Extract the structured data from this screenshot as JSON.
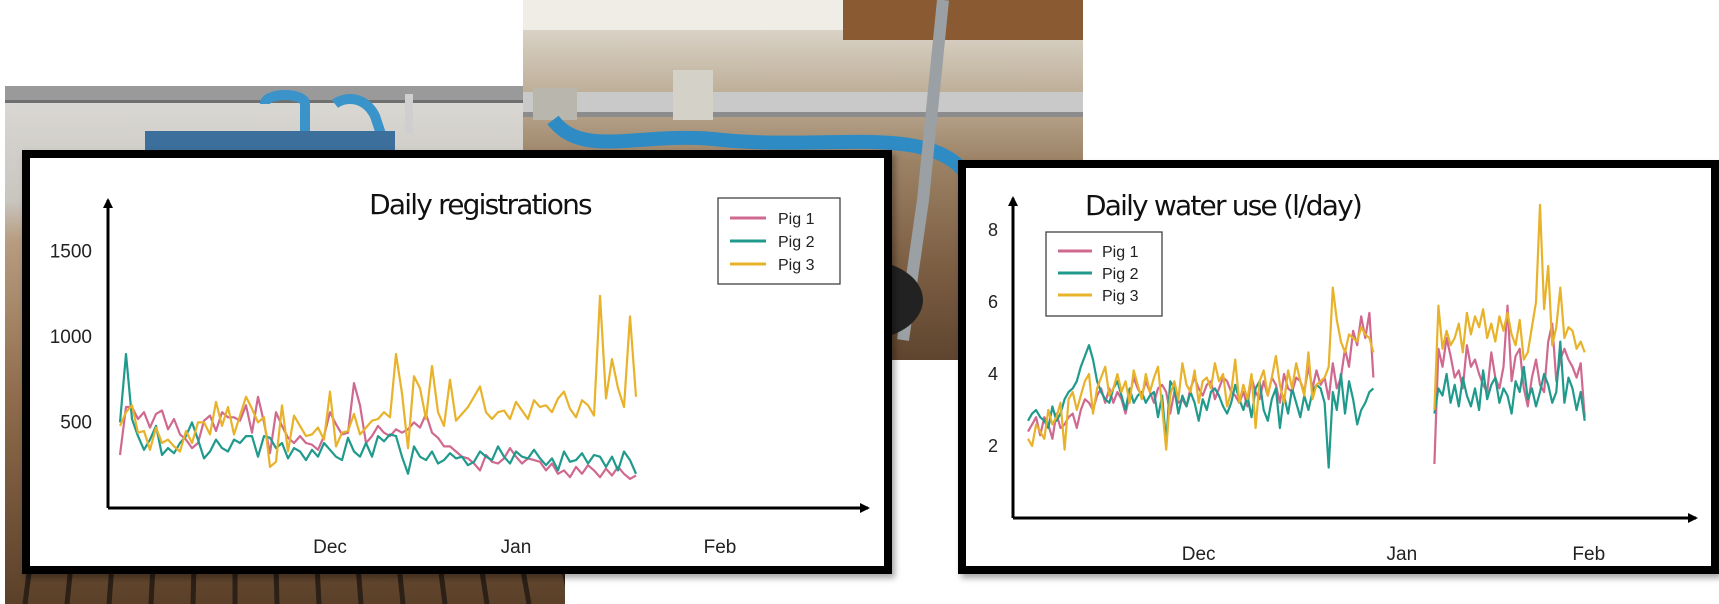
{
  "colors": {
    "pig1": "#d0698f",
    "pig2": "#1f9a8c",
    "pig3": "#e8b32b"
  },
  "chart_data": [
    {
      "type": "line",
      "title": "Daily registrations",
      "xlabel": "",
      "ylabel": "",
      "x_ticks": [
        {
          "label": "Dec",
          "index": 35
        },
        {
          "label": "Jan",
          "index": 66
        },
        {
          "label": "Feb",
          "index": 100
        }
      ],
      "y_ticks": [
        500,
        1000,
        1500
      ],
      "ylim": [
        0,
        1800
      ],
      "xlim": [
        0,
        112
      ],
      "grid": false,
      "legend_position": "top-right",
      "series": [
        {
          "name": "Pig 1",
          "color": "#d0698f",
          "values": [
            310,
            590,
            590,
            520,
            560,
            470,
            550,
            570,
            460,
            520,
            430,
            400,
            350,
            380,
            510,
            540,
            450,
            560,
            530,
            530,
            510,
            600,
            440,
            650,
            500,
            320,
            560,
            480,
            410,
            380,
            420,
            380,
            370,
            340,
            420,
            560,
            490,
            430,
            440,
            730,
            600,
            380,
            420,
            480,
            440,
            420,
            460,
            440,
            460,
            500,
            470,
            550,
            440,
            410,
            360,
            360,
            330,
            300,
            290,
            260,
            220,
            310,
            270,
            260,
            290,
            350,
            300,
            260,
            290,
            280,
            270,
            220,
            260,
            200,
            220,
            180,
            240,
            200,
            250,
            220,
            180,
            230,
            190,
            240,
            200,
            170,
            190
          ]
        },
        {
          "name": "Pig 2",
          "color": "#1f9a8c",
          "values": [
            500,
            900,
            520,
            420,
            340,
            400,
            480,
            310,
            350,
            320,
            380,
            420,
            500,
            400,
            290,
            330,
            400,
            350,
            330,
            400,
            380,
            420,
            420,
            300,
            420,
            410,
            350,
            380,
            290,
            350,
            330,
            280,
            340,
            300,
            380,
            340,
            300,
            280,
            410,
            330,
            300,
            380,
            300,
            420,
            390,
            430,
            420,
            300,
            200,
            360,
            300,
            280,
            330,
            260,
            280,
            320,
            290,
            300,
            250,
            270,
            330,
            300,
            280,
            360,
            300,
            260,
            330,
            300,
            290,
            340,
            290,
            250,
            290,
            220,
            330,
            270,
            280,
            320,
            260,
            310,
            300,
            240,
            300,
            220,
            330,
            280,
            200
          ]
        },
        {
          "name": "Pig 3",
          "color": "#e8b32b",
          "values": [
            480,
            560,
            600,
            440,
            450,
            340,
            470,
            380,
            400,
            360,
            330,
            450,
            380,
            500,
            500,
            430,
            620,
            480,
            590,
            430,
            540,
            650,
            580,
            500,
            530,
            240,
            270,
            600,
            330,
            540,
            480,
            420,
            430,
            470,
            400,
            680,
            360,
            440,
            450,
            550,
            430,
            470,
            510,
            520,
            560,
            530,
            900,
            670,
            350,
            770,
            700,
            520,
            830,
            560,
            480,
            750,
            510,
            550,
            590,
            650,
            710,
            560,
            520,
            560,
            570,
            520,
            620,
            570,
            520,
            630,
            590,
            600,
            560,
            640,
            680,
            580,
            530,
            630,
            600,
            540,
            1240,
            640,
            870,
            700,
            590,
            1120,
            650
          ]
        }
      ]
    },
    {
      "type": "line",
      "title": "Daily water use (l/day)",
      "xlabel": "",
      "ylabel": "",
      "x_ticks": [
        {
          "label": "Dec",
          "index": 42
        },
        {
          "label": "Jan",
          "index": 92
        },
        {
          "label": "Feb",
          "index": 138
        }
      ],
      "y_ticks": [
        2,
        4,
        6,
        8
      ],
      "ylim": [
        0.0,
        9.0
      ],
      "xlim": [
        0,
        157
      ],
      "grid": false,
      "legend_position": "top-left",
      "series": [
        {
          "name": "Pig 1",
          "color": "#d0698f",
          "values": [
            2.4,
            2.6,
            2.8,
            2.3,
            2.8,
            2.6,
            2.2,
            2.9,
            2.5,
            2.6,
            2.8,
            2.9,
            2.5,
            3.0,
            3.3,
            3.2,
            3.0,
            3.4,
            3.6,
            3.2,
            3.6,
            3.2,
            3.5,
            3.3,
            2.9,
            3.4,
            3.9,
            3.6,
            3.4,
            3.8,
            3.5,
            3.2,
            3.6,
            3.7,
            3.5,
            2.9,
            3.5,
            3.2,
            3.3,
            3.1,
            3.6,
            3.9,
            3.6,
            3.4,
            3.7,
            3.8,
            3.3,
            3.6,
            3.9,
            3.8,
            3.5,
            3.4,
            3.2,
            3.5,
            3.1,
            3.9,
            3.5,
            3.3,
            3.8,
            3.4,
            3.9,
            3.7,
            3.2,
            4.0,
            3.6,
            3.5,
            3.9,
            3.8,
            3.5,
            4.2,
            3.6,
            4.1,
            3.7,
            3.9,
            3.3,
            4.3,
            3.6,
            3.9,
            4.7,
            4.2,
            5.2,
            4.8,
            5.6,
            5.0,
            5.7,
            3.9,
            null,
            null,
            null,
            null,
            null,
            null,
            null,
            null,
            null,
            null,
            null,
            null,
            null,
            null,
            1.5,
            4.7,
            4.2,
            5.0,
            4.5,
            3.9,
            4.1,
            3.6,
            4.8,
            4.2,
            4.4,
            4.0,
            3.7,
            3.5,
            4.6,
            3.9,
            3.6,
            4.2,
            5.9,
            3.8,
            4.5,
            4.7,
            3.6,
            3.1,
            3.9,
            4.4,
            3.7,
            3.5,
            4.9,
            5.4,
            3.8,
            4.4,
            4.7,
            4.4,
            4.2,
            3.9,
            4.3,
            2.8
          ]
        },
        {
          "name": "Pig 2",
          "color": "#1f9a8c",
          "values": [
            2.7,
            2.9,
            3.0,
            2.8,
            2.7,
            2.5,
            3.1,
            2.7,
            2.9,
            3.3,
            3.5,
            3.6,
            3.8,
            4.2,
            4.5,
            4.8,
            4.4,
            3.8,
            3.5,
            3.3,
            3.2,
            3.6,
            3.8,
            3.4,
            3.0,
            3.6,
            3.2,
            3.4,
            3.5,
            3.2,
            3.4,
            3.5,
            2.8,
            3.4,
            2.1,
            3.8,
            3.6,
            2.9,
            3.4,
            3.1,
            3.5,
            3.2,
            2.7,
            3.3,
            3.0,
            3.5,
            3.6,
            3.4,
            3.1,
            2.9,
            3.2,
            3.7,
            3.3,
            3.0,
            3.4,
            2.8,
            3.6,
            3.8,
            3.0,
            2.7,
            3.3,
            3.6,
            2.5,
            3.4,
            2.9,
            3.6,
            3.2,
            2.8,
            3.4,
            3.0,
            3.5,
            3.7,
            3.6,
            3.2,
            1.4,
            3.5,
            3.0,
            4.0,
            2.9,
            3.8,
            3.3,
            2.6,
            3.0,
            3.2,
            3.5,
            3.6,
            null,
            null,
            null,
            null,
            null,
            null,
            null,
            null,
            null,
            null,
            null,
            null,
            null,
            null,
            2.9,
            3.6,
            3.4,
            4.0,
            3.2,
            3.7,
            3.1,
            3.9,
            3.4,
            3.1,
            3.6,
            3.0,
            4.1,
            3.3,
            3.7,
            3.9,
            3.2,
            3.6,
            3.4,
            2.9,
            3.8,
            3.5,
            4.2,
            3.3,
            3.6,
            3.1,
            3.5,
            4.0,
            3.7,
            3.2,
            3.5,
            4.9,
            3.2,
            3.9,
            3.6,
            3.0,
            3.5,
            2.7
          ]
        },
        {
          "name": "Pig 3",
          "color": "#e8b32b",
          "values": [
            2.2,
            2.0,
            2.6,
            2.4,
            2.2,
            3.0,
            2.6,
            2.8,
            3.2,
            1.9,
            3.3,
            3.5,
            3.0,
            3.4,
            3.8,
            4.0,
            2.9,
            3.6,
            3.9,
            4.2,
            3.4,
            3.6,
            4.0,
            3.5,
            3.8,
            3.2,
            4.1,
            3.7,
            3.3,
            4.0,
            3.5,
            3.9,
            4.2,
            3.1,
            1.9,
            3.4,
            3.8,
            3.3,
            4.3,
            3.7,
            3.5,
            4.1,
            3.2,
            3.8,
            3.9,
            3.6,
            4.3,
            3.8,
            4.0,
            3.1,
            3.5,
            4.4,
            3.2,
            3.7,
            3.3,
            4.0,
            2.5,
            3.8,
            4.1,
            3.4,
            3.9,
            4.5,
            3.7,
            3.2,
            4.1,
            3.6,
            4.3,
            3.8,
            3.4,
            4.6,
            3.3,
            3.7,
            3.8,
            3.9,
            4.2,
            6.4,
            5.5,
            4.9,
            4.6,
            5.1,
            5.0,
            4.9,
            5.3,
            5.1,
            5.0,
            4.6,
            null,
            null,
            null,
            null,
            null,
            null,
            null,
            null,
            null,
            null,
            null,
            null,
            null,
            null,
            3.0,
            5.9,
            4.7,
            5.2,
            4.8,
            5.0,
            5.4,
            4.6,
            5.7,
            5.1,
            5.6,
            5.3,
            5.8,
            5.0,
            5.4,
            4.9,
            5.6,
            5.2,
            5.7,
            5.1,
            4.8,
            5.5,
            4.4,
            4.6,
            5.3,
            6.0,
            8.7,
            5.8,
            7.0,
            4.8,
            5.3,
            6.4,
            5.0,
            5.3,
            5.2,
            4.7,
            4.9,
            4.6
          ]
        }
      ]
    }
  ]
}
